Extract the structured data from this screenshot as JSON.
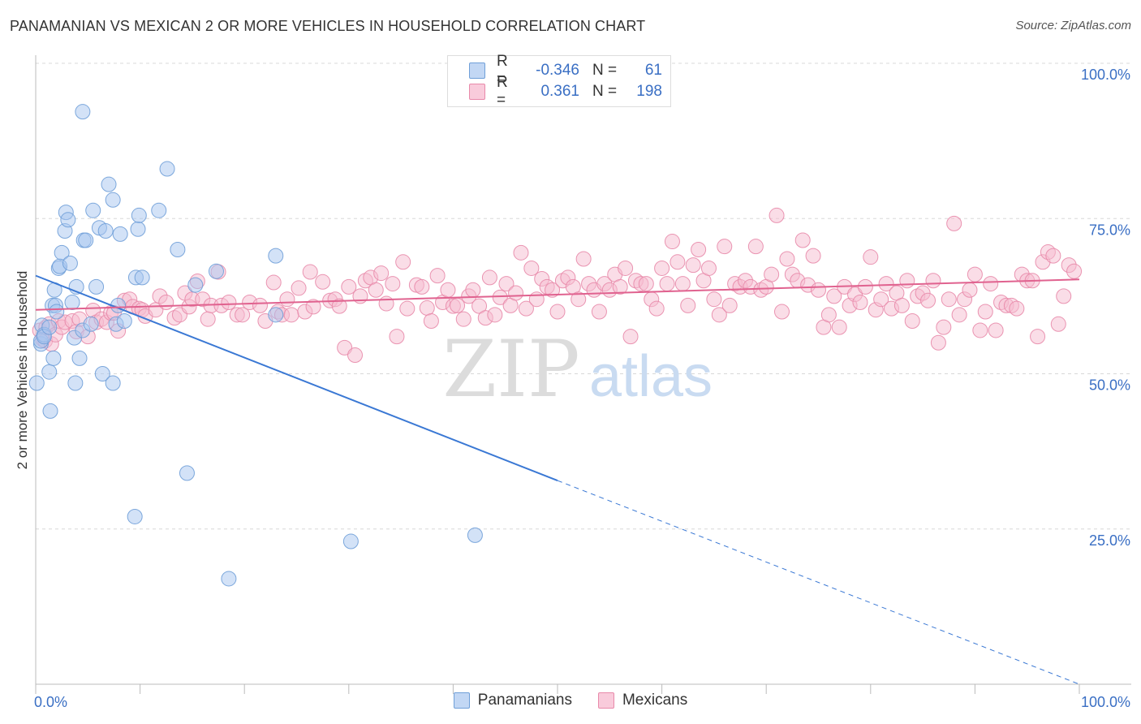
{
  "title": "PANAMANIAN VS MEXICAN 2 OR MORE VEHICLES IN HOUSEHOLD CORRELATION CHART",
  "source": "Source: ZipAtlas.com",
  "watermark": {
    "zip": "ZIP",
    "atlas": "atlas"
  },
  "legend": {
    "rows": [
      {
        "r_label": "R =",
        "r_value": "-0.346",
        "n_label": "N =",
        "n_value": "61",
        "color": "#a8c6ef",
        "border": "#6f9fd8"
      },
      {
        "r_label": "R =",
        "r_value": "0.361",
        "n_label": "N =",
        "n_value": "198",
        "color": "#f6bcd0",
        "border": "#e889aa"
      }
    ]
  },
  "bottom_legend": [
    {
      "label": "Panamanians",
      "color": "#c2d7f4",
      "border": "#6f9fd8"
    },
    {
      "label": "Mexicans",
      "color": "#f9cbdb",
      "border": "#e889aa"
    }
  ],
  "chart_data": {
    "type": "scatter",
    "xlabel": "",
    "ylabel": "2 or more Vehicles in Household",
    "xlim": [
      0,
      100
    ],
    "ylim": [
      0,
      100
    ],
    "x_tick_labels": [
      "0.0%",
      "100.0%"
    ],
    "y_tick_labels": [
      "100.0%",
      "75.0%",
      "50.0%",
      "25.0%"
    ],
    "y_ticks": [
      100,
      75,
      50,
      25
    ],
    "grid": "horizontal dashed",
    "series": [
      {
        "name": "Panamanians",
        "color": "#a8c6ef",
        "stroke": "#6f9fd8",
        "trend": {
          "x": [
            0,
            50
          ],
          "y": [
            65.8,
            32.8
          ],
          "dash_to": [
            100,
            0
          ],
          "color": "#3a78d4"
        },
        "points": [
          [
            0.1,
            48.5
          ],
          [
            0.5,
            54.8
          ],
          [
            0.5,
            55.3
          ],
          [
            0.6,
            57.8
          ],
          [
            0.8,
            56.3
          ],
          [
            0.8,
            56.0
          ],
          [
            1.3,
            50.3
          ],
          [
            1.3,
            57.5
          ],
          [
            1.4,
            44.0
          ],
          [
            1.6,
            61.0
          ],
          [
            1.7,
            52.5
          ],
          [
            1.8,
            63.5
          ],
          [
            1.9,
            61.0
          ],
          [
            2.0,
            60.0
          ],
          [
            2.2,
            67.0
          ],
          [
            2.3,
            67.3
          ],
          [
            2.5,
            69.5
          ],
          [
            2.8,
            73.0
          ],
          [
            2.9,
            76.0
          ],
          [
            3.1,
            74.8
          ],
          [
            3.3,
            67.8
          ],
          [
            3.5,
            61.5
          ],
          [
            3.7,
            55.8
          ],
          [
            3.8,
            48.5
          ],
          [
            3.9,
            64.0
          ],
          [
            4.2,
            52.5
          ],
          [
            4.5,
            57.0
          ],
          [
            4.5,
            92.2
          ],
          [
            4.6,
            71.5
          ],
          [
            4.8,
            71.5
          ],
          [
            5.3,
            58.0
          ],
          [
            5.5,
            76.3
          ],
          [
            5.8,
            64.0
          ],
          [
            6.1,
            73.5
          ],
          [
            6.4,
            50.0
          ],
          [
            6.7,
            73.0
          ],
          [
            7.0,
            80.5
          ],
          [
            7.4,
            78.0
          ],
          [
            7.4,
            48.5
          ],
          [
            7.7,
            58.0
          ],
          [
            7.9,
            61.0
          ],
          [
            8.1,
            72.5
          ],
          [
            8.5,
            58.5
          ],
          [
            9.5,
            27.0
          ],
          [
            9.6,
            65.5
          ],
          [
            9.8,
            73.3
          ],
          [
            9.9,
            75.5
          ],
          [
            10.2,
            65.5
          ],
          [
            11.8,
            76.3
          ],
          [
            12.6,
            83.0
          ],
          [
            13.6,
            70.0
          ],
          [
            14.5,
            34.0
          ],
          [
            15.3,
            64.3
          ],
          [
            17.3,
            66.5
          ],
          [
            18.5,
            17.0
          ],
          [
            23.0,
            69.0
          ],
          [
            23.0,
            59.5
          ],
          [
            30.2,
            23.0
          ],
          [
            42.1,
            24.0
          ]
        ]
      },
      {
        "name": "Mexicans",
        "color": "#f6bcd0",
        "stroke": "#e889aa",
        "trend": {
          "x": [
            0,
            100
          ],
          "y": [
            60.3,
            65.2
          ],
          "color": "#e0628f"
        },
        "points": [
          [
            0.4,
            57.0
          ],
          [
            0.7,
            55.5
          ],
          [
            0.9,
            55.3
          ],
          [
            1.0,
            57.5
          ],
          [
            1.3,
            58.0
          ],
          [
            1.5,
            54.8
          ],
          [
            1.9,
            56.3
          ],
          [
            2.2,
            58.5
          ],
          [
            2.5,
            57.5
          ],
          [
            2.8,
            58.3
          ],
          [
            3.5,
            58.5
          ],
          [
            3.9,
            56.8
          ],
          [
            4.2,
            58.8
          ],
          [
            5.0,
            56.0
          ],
          [
            5.5,
            60.2
          ],
          [
            5.8,
            58.3
          ],
          [
            6.3,
            58.8
          ],
          [
            6.8,
            58.3
          ],
          [
            7.2,
            59.8
          ],
          [
            7.5,
            59.8
          ],
          [
            7.9,
            56.9
          ],
          [
            8.5,
            61.8
          ],
          [
            9.0,
            62.0
          ],
          [
            9.3,
            60.8
          ],
          [
            9.9,
            60.5
          ],
          [
            10.2,
            60.3
          ],
          [
            10.5,
            59.3
          ],
          [
            11.5,
            60.3
          ],
          [
            11.9,
            62.5
          ],
          [
            12.5,
            61.5
          ],
          [
            13.3,
            59.0
          ],
          [
            13.8,
            59.5
          ],
          [
            14.3,
            63.0
          ],
          [
            14.7,
            60.8
          ],
          [
            15.0,
            62.0
          ],
          [
            15.5,
            64.9
          ],
          [
            16.0,
            62.0
          ],
          [
            16.5,
            58.8
          ],
          [
            16.8,
            61.0
          ],
          [
            17.5,
            66.4
          ],
          [
            17.8,
            61.0
          ],
          [
            18.5,
            61.5
          ],
          [
            19.3,
            59.5
          ],
          [
            19.8,
            59.5
          ],
          [
            20.5,
            61.5
          ],
          [
            21.5,
            61.0
          ],
          [
            22.0,
            58.5
          ],
          [
            22.8,
            64.7
          ],
          [
            23.2,
            60.0
          ],
          [
            23.6,
            59.5
          ],
          [
            24.1,
            62.0
          ],
          [
            24.5,
            59.5
          ],
          [
            25.2,
            63.8
          ],
          [
            25.8,
            60.0
          ],
          [
            26.3,
            66.4
          ],
          [
            26.6,
            60.8
          ],
          [
            27.5,
            64.8
          ],
          [
            28.2,
            61.8
          ],
          [
            28.7,
            62.0
          ],
          [
            29.1,
            60.9
          ],
          [
            29.6,
            54.2
          ],
          [
            30.0,
            64.0
          ],
          [
            30.6,
            53.0
          ],
          [
            31.1,
            62.5
          ],
          [
            31.6,
            65.0
          ],
          [
            32.1,
            65.5
          ],
          [
            32.6,
            63.5
          ],
          [
            33.1,
            66.2
          ],
          [
            33.6,
            61.3
          ],
          [
            34.2,
            64.5
          ],
          [
            34.6,
            56.0
          ],
          [
            35.2,
            68.0
          ],
          [
            35.6,
            60.5
          ],
          [
            36.5,
            64.3
          ],
          [
            37.0,
            64.0
          ],
          [
            37.5,
            60.6
          ],
          [
            37.9,
            58.5
          ],
          [
            38.5,
            65.8
          ],
          [
            39.0,
            61.5
          ],
          [
            39.5,
            63.5
          ],
          [
            40.0,
            60.9
          ],
          [
            40.4,
            61.0
          ],
          [
            41.0,
            58.8
          ],
          [
            41.5,
            62.5
          ],
          [
            41.9,
            63.5
          ],
          [
            42.5,
            60.9
          ],
          [
            43.1,
            59.0
          ],
          [
            43.5,
            65.5
          ],
          [
            44.0,
            59.5
          ],
          [
            44.5,
            62.3
          ],
          [
            45.1,
            64.5
          ],
          [
            45.5,
            61.0
          ],
          [
            46.0,
            63.0
          ],
          [
            46.5,
            69.5
          ],
          [
            47.0,
            60.5
          ],
          [
            47.5,
            67.0
          ],
          [
            48.0,
            62.0
          ],
          [
            48.5,
            65.3
          ],
          [
            49.0,
            64.0
          ],
          [
            49.5,
            63.5
          ],
          [
            50.0,
            60.0
          ],
          [
            50.5,
            65.0
          ],
          [
            51.0,
            65.5
          ],
          [
            51.5,
            64.0
          ],
          [
            52.0,
            62.0
          ],
          [
            52.5,
            68.5
          ],
          [
            53.0,
            64.5
          ],
          [
            53.5,
            63.5
          ],
          [
            54.0,
            60.0
          ],
          [
            54.5,
            64.5
          ],
          [
            55.0,
            63.5
          ],
          [
            55.5,
            66.0
          ],
          [
            56.0,
            64.0
          ],
          [
            56.5,
            67.0
          ],
          [
            57.0,
            56.0
          ],
          [
            57.5,
            65.0
          ],
          [
            58.0,
            64.5
          ],
          [
            58.5,
            64.5
          ],
          [
            59.0,
            62.0
          ],
          [
            59.5,
            60.5
          ],
          [
            60.0,
            67.0
          ],
          [
            60.5,
            64.5
          ],
          [
            61.0,
            71.3
          ],
          [
            61.5,
            68.0
          ],
          [
            62.0,
            64.5
          ],
          [
            62.5,
            61.0
          ],
          [
            63.0,
            67.5
          ],
          [
            63.5,
            70.0
          ],
          [
            64.0,
            65.0
          ],
          [
            64.5,
            67.0
          ],
          [
            65.0,
            62.0
          ],
          [
            65.5,
            59.5
          ],
          [
            66.0,
            70.5
          ],
          [
            66.5,
            61.0
          ],
          [
            67.0,
            64.5
          ],
          [
            67.5,
            64.0
          ],
          [
            68.0,
            65.0
          ],
          [
            68.5,
            64.0
          ],
          [
            69.0,
            70.5
          ],
          [
            69.5,
            63.5
          ],
          [
            70.0,
            64.0
          ],
          [
            70.5,
            66.0
          ],
          [
            71.0,
            75.5
          ],
          [
            71.5,
            60.0
          ],
          [
            72.0,
            68.5
          ],
          [
            72.5,
            66.0
          ],
          [
            73.0,
            65.0
          ],
          [
            73.5,
            71.5
          ],
          [
            74.0,
            64.3
          ],
          [
            74.5,
            69.0
          ],
          [
            75.0,
            63.5
          ],
          [
            75.5,
            57.5
          ],
          [
            76.0,
            59.5
          ],
          [
            76.5,
            62.5
          ],
          [
            77.0,
            57.5
          ],
          [
            77.5,
            64.0
          ],
          [
            78.0,
            61.0
          ],
          [
            78.5,
            62.8
          ],
          [
            79.0,
            61.5
          ],
          [
            79.5,
            64.0
          ],
          [
            80.0,
            68.8
          ],
          [
            80.5,
            60.3
          ],
          [
            81.0,
            62.0
          ],
          [
            81.5,
            64.5
          ],
          [
            82.0,
            60.5
          ],
          [
            82.5,
            63.0
          ],
          [
            83.0,
            61.0
          ],
          [
            83.5,
            65.0
          ],
          [
            84.0,
            58.5
          ],
          [
            84.5,
            62.5
          ],
          [
            85.0,
            63.0
          ],
          [
            85.5,
            61.8
          ],
          [
            86.0,
            65.0
          ],
          [
            86.5,
            55.0
          ],
          [
            87.0,
            57.5
          ],
          [
            87.5,
            62.0
          ],
          [
            88.0,
            74.2
          ],
          [
            88.5,
            59.5
          ],
          [
            89.0,
            62.0
          ],
          [
            89.5,
            63.5
          ],
          [
            90.0,
            66.0
          ],
          [
            90.5,
            57.0
          ],
          [
            91.0,
            60.0
          ],
          [
            91.5,
            64.5
          ],
          [
            92.0,
            57.0
          ],
          [
            92.5,
            61.5
          ],
          [
            93.0,
            61.0
          ],
          [
            93.5,
            61.0
          ],
          [
            94.0,
            60.5
          ],
          [
            94.5,
            66.0
          ],
          [
            95.0,
            65.0
          ],
          [
            95.5,
            65.0
          ],
          [
            96.0,
            56.0
          ],
          [
            96.5,
            68.0
          ],
          [
            97.0,
            69.6
          ],
          [
            97.5,
            69.0
          ],
          [
            98.0,
            58.0
          ],
          [
            98.5,
            62.5
          ],
          [
            99.0,
            67.5
          ],
          [
            99.5,
            66.5
          ]
        ]
      }
    ]
  }
}
